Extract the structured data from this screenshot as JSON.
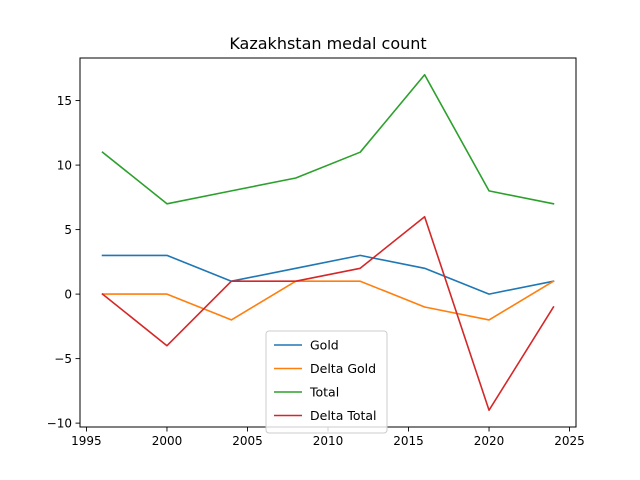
{
  "chart_data": {
    "type": "line",
    "title": "Kazakhstan medal count",
    "xlabel": "",
    "ylabel": "",
    "xlim": [
      1994.6,
      2025.4
    ],
    "ylim": [
      -10.3,
      18.3
    ],
    "x_ticks": [
      1995,
      2000,
      2005,
      2010,
      2015,
      2020,
      2025
    ],
    "y_ticks": [
      -10,
      -5,
      0,
      5,
      10,
      15
    ],
    "x": [
      1996,
      2000,
      2004,
      2008,
      2012,
      2016,
      2020,
      2024
    ],
    "series": [
      {
        "name": "Gold",
        "color": "#1f77b4",
        "values": [
          3,
          3,
          1,
          2,
          3,
          2,
          0,
          1
        ]
      },
      {
        "name": "Delta Gold",
        "color": "#ff7f0e",
        "values": [
          0,
          0,
          -2,
          1,
          1,
          -1,
          -2,
          1
        ]
      },
      {
        "name": "Total",
        "color": "#2ca02c",
        "values": [
          11,
          7,
          8,
          9,
          11,
          17,
          8,
          7
        ]
      },
      {
        "name": "Delta Total",
        "color": "#d62728",
        "values": [
          0,
          -4,
          1,
          1,
          2,
          6,
          -9,
          -1
        ]
      }
    ],
    "grid": false,
    "legend_position": "lower-center"
  }
}
